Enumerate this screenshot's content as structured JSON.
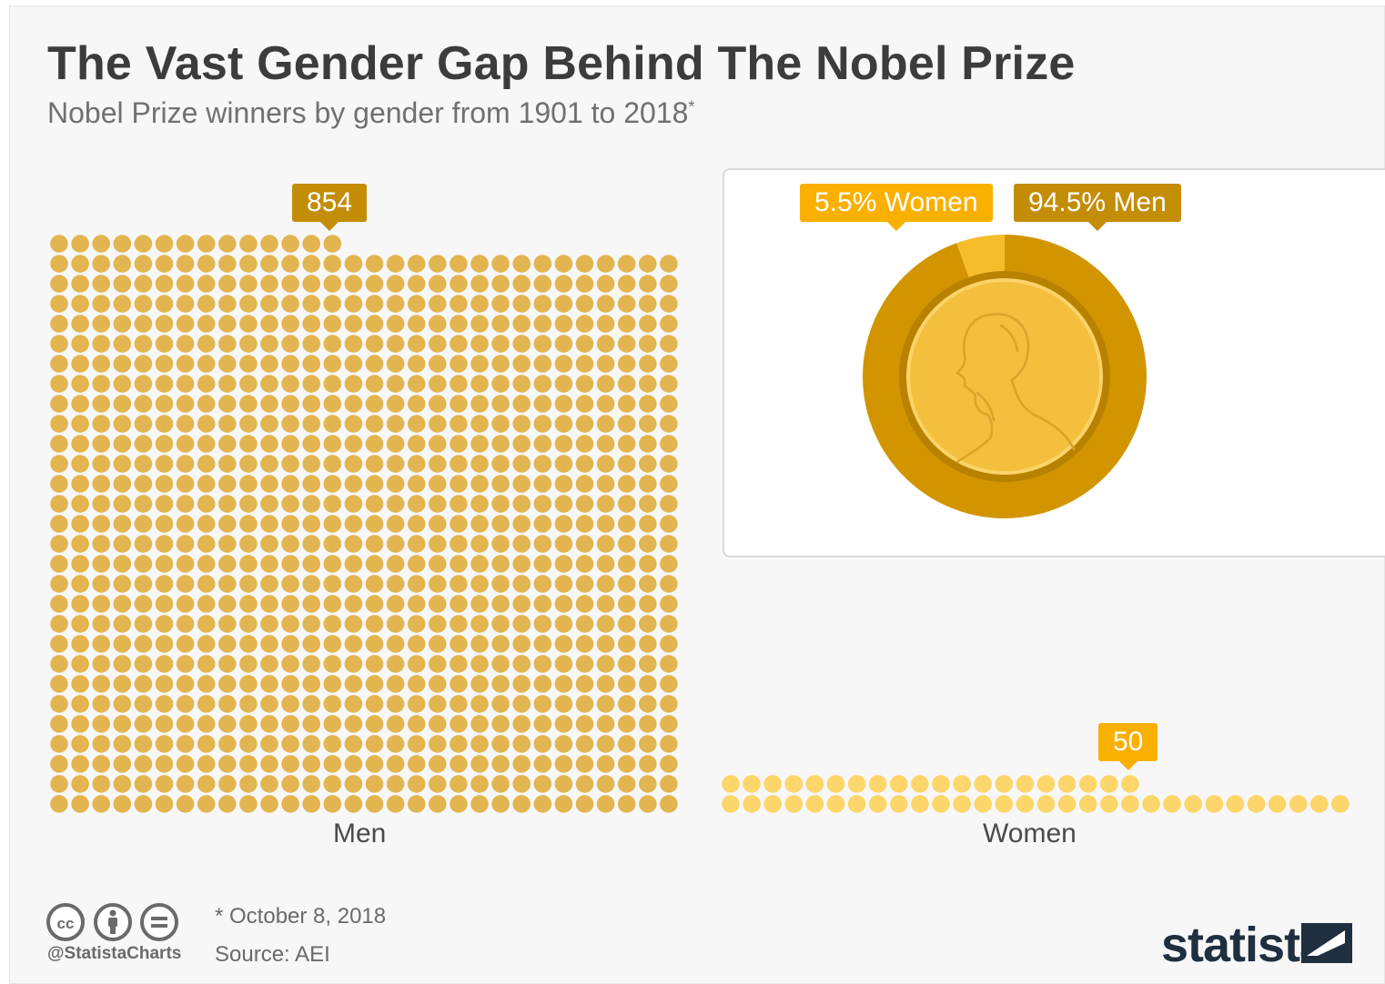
{
  "header": {
    "title": "The Vast Gender Gap Behind The Nobel Prize",
    "subtitle": "Nobel Prize winners by gender from 1901 to 2018",
    "subtitle_mark": "*"
  },
  "colors": {
    "men_dot": "#e2b550",
    "women_dot": "#fcd66b",
    "men_tag": "#c48d07",
    "women_tag": "#f9b000",
    "donut_men": "#d29500",
    "donut_women": "#f6bd2b",
    "medal": "#f3bf3d"
  },
  "chart_data": [
    {
      "type": "unit",
      "categories": [
        "Men",
        "Women"
      ],
      "values": [
        854,
        50
      ],
      "value_labels": [
        "854",
        "50"
      ]
    },
    {
      "type": "pie",
      "style": "donut",
      "labels": [
        "5.5% Women",
        "94.5% Men"
      ],
      "values": [
        5.5,
        94.5
      ]
    }
  ],
  "footer": {
    "note": "* October 8, 2018",
    "source": "Source: AEI",
    "handle": "@StatistaCharts",
    "brand": "statista",
    "license_icons": [
      "cc-icon",
      "by-icon",
      "nd-icon"
    ]
  }
}
